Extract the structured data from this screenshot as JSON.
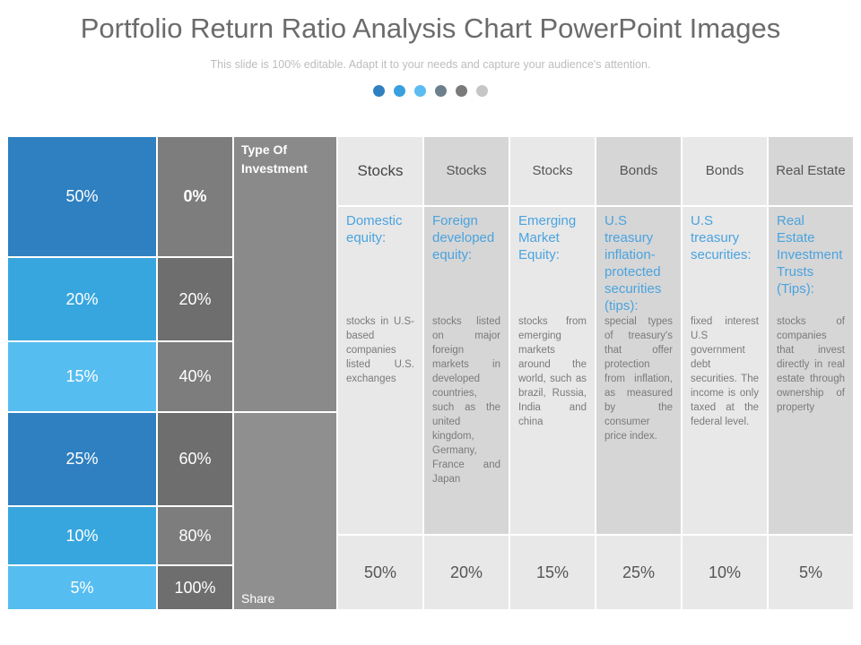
{
  "title": "Portfolio Return Ratio Analysis Chart PowerPoint Images",
  "subtitle": "This slide is 100% editable. Adapt it to your needs and capture your audience's attention.",
  "dot_colors": [
    "#2f80c0",
    "#38a0de",
    "#5bbcf0",
    "#6d7f8c",
    "#7a7a7a",
    "#c6c6c6"
  ],
  "left_bars": {
    "blue": [
      "50%",
      "20%",
      "15%",
      "25%",
      "10%",
      "5%"
    ],
    "gray": [
      "0%",
      "20%",
      "40%",
      "60%",
      "80%",
      "100%"
    ]
  },
  "type_label": "Type Of Investment",
  "share_label": "Share",
  "columns": [
    {
      "type": "Stocks",
      "title": "Domestic equity:",
      "desc": "stocks in U.S-based companies listed U.S. exchanges",
      "share": "50%"
    },
    {
      "type": "Stocks",
      "title": "Foreign developed equity:",
      "desc": "stocks listed on major foreign markets in developed countries, such as the united kingdom, Germany, France and Japan",
      "share": "20%"
    },
    {
      "type": "Stocks",
      "title": "Emerging Market Equity:",
      "desc": "stocks from emerging markets around the world, such as brazil, Russia, India and china",
      "share": "15%"
    },
    {
      "type": "Bonds",
      "title": "U.S treasury inflation-protected securities (tips):",
      "desc": "special types of treasury's that offer protection from inflation, as measured by the consumer price index.",
      "share": "25%"
    },
    {
      "type": "Bonds",
      "title": "U.S treasury securities:",
      "desc": "fixed interest U.S government debt securities. The income is only taxed at the federal level.",
      "share": "10%"
    },
    {
      "type": "Real Estate",
      "title": "Real Estate Investment Trusts (Tips):",
      "desc": "stocks of companies that invest directly in real estate through ownership of property",
      "share": "5%"
    }
  ]
}
